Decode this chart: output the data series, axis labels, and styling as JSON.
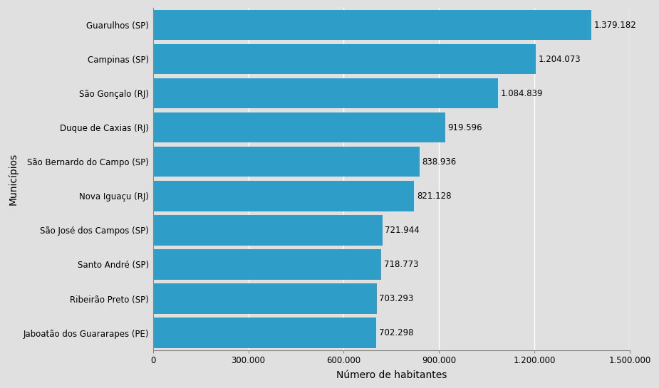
{
  "municipalities": [
    "Jaboatão dos Guararapes (PE)",
    "Ribeirão Preto (SP)",
    "Santo André (SP)",
    "São José dos Campos (SP)",
    "Nova Iguaçu (RJ)",
    "São Bernardo do Campo (SP)",
    "Duque de Caxias (RJ)",
    "São Gonçalo (RJ)",
    "Campinas (SP)",
    "Guarulhos (SP)"
  ],
  "values": [
    702298,
    703293,
    718773,
    721944,
    821128,
    838936,
    919596,
    1084839,
    1204073,
    1379182
  ],
  "labels": [
    "702.298",
    "703.293",
    "718.773",
    "721.944",
    "821.128",
    "838.936",
    "919.596",
    "1.084.839",
    "1.204.073",
    "1.379.182"
  ],
  "bar_color": "#2E9EC8",
  "background_color": "#E0E0E0",
  "plot_bg_color": "#E0E0E0",
  "right_bg_color": "#DCDCDC",
  "xlabel": "Número de habitantes",
  "ylabel": "Municípios",
  "xlim": [
    0,
    1500000
  ],
  "xticks": [
    0,
    300000,
    600000,
    900000,
    1200000,
    1500000
  ],
  "xtick_labels": [
    "0",
    "300.000",
    "600.000",
    "900.000",
    "1.200.000",
    "1.500.000"
  ],
  "bar_height": 0.88,
  "label_fontsize": 8.5,
  "axis_fontsize": 10,
  "tick_fontsize": 8.5,
  "ylabel_fontsize": 10
}
